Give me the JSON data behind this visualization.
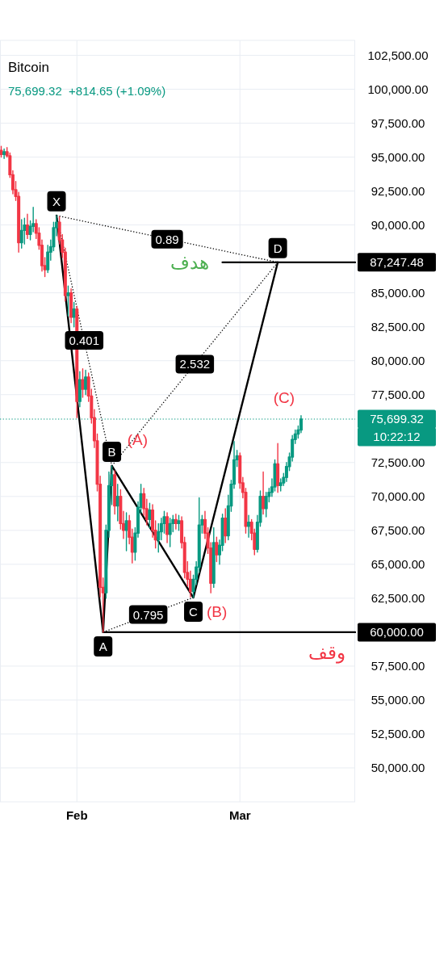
{
  "chart_data": {
    "type": "candlestick",
    "title": "Bitcoin",
    "subtitle": "75,699.32  +814.65 (+1.09%)",
    "x": [
      "--01-19T00:00",
      "--01-19T12:00",
      "--01-20T00:00",
      "--01-20T12:00",
      "--01-21T00:00",
      "--01-21T12:00",
      "--01-22T00:00",
      "--01-22T12:00",
      "--01-23T00:00",
      "--01-23T12:00",
      "--01-24T00:00",
      "--01-24T12:00",
      "--01-25T00:00",
      "--01-25T12:00",
      "--01-26T00:00",
      "--01-26T12:00",
      "--01-27T00:00",
      "--01-27T12:00",
      "--01-28T00:00",
      "--01-28T12:00",
      "--01-29T00:00",
      "--01-29T12:00",
      "--01-30T00:00",
      "--01-30T12:00",
      "--01-31T00:00",
      "--01-31T12:00",
      "--02-01T00:00",
      "--02-01T12:00",
      "--02-02T00:00",
      "--02-02T12:00",
      "--02-03T00:00",
      "--02-03T12:00",
      "--02-04T00:00",
      "--02-04T12:00",
      "--02-05T00:00",
      "--02-05T12:00",
      "--02-06T00:00",
      "--02-06T12:00",
      "--02-07T00:00",
      "--02-07T12:00",
      "--02-08T00:00",
      "--02-08T12:00",
      "--02-09T00:00",
      "--02-09T12:00",
      "--02-10T00:00",
      "--02-10T12:00",
      "--02-11T00:00",
      "--02-11T12:00",
      "--02-12T00:00",
      "--02-12T12:00",
      "--02-13T00:00",
      "--02-13T12:00",
      "--02-14T00:00",
      "--02-14T12:00",
      "--02-15T00:00",
      "--02-15T12:00",
      "--02-16T00:00",
      "--02-16T12:00",
      "--02-17T00:00",
      "--02-17T12:00",
      "--02-18T00:00",
      "--02-18T12:00",
      "--02-19T00:00",
      "--02-19T12:00",
      "--02-20T00:00",
      "--02-20T12:00",
      "--02-21T00:00",
      "--02-21T12:00",
      "--02-22T00:00",
      "--02-22T12:00",
      "--02-23T00:00",
      "--02-23T12:00",
      "--02-24T00:00",
      "--02-24T12:00",
      "--02-25T00:00",
      "--02-25T12:00",
      "--02-26T00:00",
      "--02-26T12:00",
      "--02-27T00:00",
      "--02-27T12:00",
      "--02-28T00:00",
      "--02-28T12:00",
      "--03-01T00:00",
      "--03-01T12:00",
      "--03-02T00:00",
      "--03-02T12:00",
      "--03-03T00:00",
      "--03-03T12:00",
      "--03-04T00:00",
      "--03-04T12:00",
      "--03-05T00:00",
      "--03-05T12:00",
      "--03-06T00:00",
      "--03-06T12:00",
      "--03-07T00:00",
      "--03-07T12:00",
      "--03-08T00:00",
      "--03-08T12:00",
      "--03-09T00:00",
      "--03-09T12:00",
      "--03-10T00:00",
      "--03-10T12:00",
      "--03-11T00:00",
      "--03-11T12:00"
    ],
    "ohlc": [
      [
        95500,
        95800,
        95000,
        95200
      ],
      [
        95200,
        95600,
        94900,
        95400
      ],
      [
        95400,
        95700,
        95000,
        95100
      ],
      [
        95100,
        95300,
        93500,
        93700
      ],
      [
        93700,
        94000,
        92300,
        92600
      ],
      [
        92600,
        93200,
        91800,
        92100
      ],
      [
        92100,
        92400,
        88000,
        88700
      ],
      [
        88700,
        90400,
        88300,
        89600
      ],
      [
        89600,
        90500,
        88600,
        90000
      ],
      [
        90000,
        90800,
        89000,
        89300
      ],
      [
        89300,
        90300,
        88900,
        89900
      ],
      [
        89900,
        91300,
        89500,
        90100
      ],
      [
        90100,
        90400,
        89000,
        89400
      ],
      [
        89400,
        89800,
        88200,
        88500
      ],
      [
        88500,
        88900,
        86600,
        87000
      ],
      [
        87000,
        87600,
        86200,
        86700
      ],
      [
        86700,
        88500,
        86500,
        88000
      ],
      [
        88000,
        88900,
        87400,
        88400
      ],
      [
        88400,
        90200,
        88100,
        89800
      ],
      [
        89800,
        90700,
        89200,
        90200
      ],
      [
        90200,
        90600,
        88600,
        88900
      ],
      [
        88900,
        89300,
        87600,
        88000
      ],
      [
        88000,
        88300,
        84400,
        84800
      ],
      [
        84800,
        85500,
        83300,
        85000
      ],
      [
        85000,
        85300,
        82800,
        83200
      ],
      [
        83200,
        84300,
        82500,
        83800
      ],
      [
        83800,
        84000,
        75800,
        77000
      ],
      [
        77000,
        79200,
        76600,
        78600
      ],
      [
        78600,
        79400,
        77300,
        77900
      ],
      [
        77900,
        79300,
        77500,
        78800
      ],
      [
        78800,
        79100,
        77000,
        77400
      ],
      [
        77400,
        77900,
        75400,
        75800
      ],
      [
        75800,
        76400,
        73600,
        74100
      ],
      [
        74100,
        74600,
        70400,
        70900
      ],
      [
        70900,
        71500,
        62600,
        63300
      ],
      [
        63300,
        64000,
        60000,
        62900
      ],
      [
        62900,
        67900,
        62500,
        67500
      ],
      [
        67500,
        71800,
        67000,
        70800
      ],
      [
        70800,
        72250,
        69400,
        71600
      ],
      [
        71600,
        71900,
        68700,
        69300
      ],
      [
        69300,
        70900,
        68200,
        70000
      ],
      [
        70000,
        70500,
        67600,
        68000
      ],
      [
        68000,
        68900,
        66900,
        67500
      ],
      [
        67500,
        68800,
        66000,
        68200
      ],
      [
        68200,
        68600,
        66500,
        67000
      ],
      [
        67000,
        67600,
        65100,
        65900
      ],
      [
        65900,
        67700,
        65300,
        67300
      ],
      [
        67300,
        69600,
        67000,
        69200
      ],
      [
        69200,
        70900,
        68800,
        70200
      ],
      [
        70200,
        70600,
        68600,
        69100
      ],
      [
        69100,
        69800,
        67900,
        68300
      ],
      [
        68300,
        69500,
        67700,
        69000
      ],
      [
        69000,
        69400,
        67000,
        67500
      ],
      [
        67500,
        68200,
        66200,
        66800
      ],
      [
        66800,
        68000,
        65900,
        67400
      ],
      [
        67400,
        68400,
        66800,
        68000
      ],
      [
        68000,
        68900,
        67300,
        68500
      ],
      [
        68500,
        68800,
        66600,
        67200
      ],
      [
        67200,
        68400,
        66300,
        68000
      ],
      [
        68000,
        68600,
        67400,
        68300
      ],
      [
        68300,
        68700,
        67600,
        68000
      ],
      [
        68000,
        68600,
        67500,
        68200
      ],
      [
        68200,
        68500,
        66200,
        66600
      ],
      [
        66600,
        67000,
        64000,
        64400
      ],
      [
        64400,
        65200,
        63400,
        63900
      ],
      [
        63900,
        64500,
        62600,
        63000
      ],
      [
        63000,
        64200,
        62550,
        63900
      ],
      [
        63900,
        65200,
        63500,
        64800
      ],
      [
        64800,
        69900,
        64400,
        67900
      ],
      [
        67900,
        68600,
        67300,
        68300
      ],
      [
        68300,
        68900,
        66900,
        67300
      ],
      [
        67300,
        67700,
        65800,
        66200
      ],
      [
        66200,
        66600,
        62900,
        63600
      ],
      [
        63600,
        67700,
        63300,
        66600
      ],
      [
        66600,
        67000,
        65200,
        65700
      ],
      [
        65700,
        66800,
        65000,
        66400
      ],
      [
        66400,
        68700,
        66000,
        68400
      ],
      [
        68400,
        69100,
        66600,
        67100
      ],
      [
        67100,
        70100,
        66800,
        69300
      ],
      [
        69300,
        71200,
        68900,
        70900
      ],
      [
        70900,
        74050,
        70600,
        72700
      ],
      [
        72700,
        73400,
        72200,
        73000
      ],
      [
        73000,
        73200,
        70600,
        71000
      ],
      [
        71000,
        71400,
        69900,
        70300
      ],
      [
        70300,
        70600,
        67300,
        67800
      ],
      [
        67800,
        68600,
        67000,
        68100
      ],
      [
        68100,
        68300,
        66800,
        67300
      ],
      [
        67300,
        67600,
        65700,
        66100
      ],
      [
        66100,
        68600,
        65900,
        68100
      ],
      [
        68100,
        70400,
        67800,
        70000
      ],
      [
        70000,
        71800,
        68700,
        69100
      ],
      [
        69100,
        70300,
        68500,
        70000
      ],
      [
        70000,
        70600,
        69600,
        70300
      ],
      [
        70300,
        71300,
        70000,
        70700
      ],
      [
        70700,
        72700,
        70400,
        72400
      ],
      [
        72400,
        73900,
        70300,
        70800
      ],
      [
        70800,
        71300,
        70400,
        71000
      ],
      [
        71000,
        71700,
        70800,
        71400
      ],
      [
        71400,
        72500,
        71100,
        72200
      ],
      [
        72200,
        73200,
        71900,
        72900
      ],
      [
        72900,
        74500,
        72600,
        74200
      ],
      [
        74200,
        74900,
        73900,
        74600
      ],
      [
        74600,
        75200,
        74300,
        74900
      ],
      [
        74900,
        75950,
        74700,
        75699.32
      ]
    ],
    "series": [
      {
        "type": "line",
        "color": "#000000",
        "x": [
          "--01-28T12:00",
          "--02-05T12:00",
          "--02-07T00:00",
          "--02-21T00:00",
          "--03-07T12:00"
        ],
        "values": [
          90700,
          60000,
          72250,
          62550,
          87250
        ]
      },
      {
        "type": "line",
        "line_style": "dotted",
        "color": "#000000",
        "x": [
          "--01-28T12:00",
          "--02-07T00:00"
        ],
        "values": [
          90700,
          72250
        ]
      },
      {
        "type": "line",
        "line_style": "dotted",
        "color": "#000000",
        "x": [
          "--02-05T12:00",
          "--02-21T00:00"
        ],
        "values": [
          60000,
          62550
        ]
      },
      {
        "type": "line",
        "line_style": "dotted",
        "color": "#000000",
        "x": [
          "--02-07T00:00",
          "--03-07T12:00"
        ],
        "values": [
          72250,
          87250
        ]
      },
      {
        "type": "line",
        "line_style": "dotted",
        "color": "#000000",
        "x": [
          "--01-28T12:00",
          "--03-07T12:00"
        ],
        "values": [
          90700,
          87250
        ]
      },
      {
        "type": "line",
        "color": "#000000",
        "x": [
          "--02-26T00:00",
          "--03-20T19:00"
        ],
        "values": [
          87247.48,
          87247.48
        ],
        "value_labels": [
          null,
          "87,247.48"
        ]
      },
      {
        "type": "line",
        "color": "#000000",
        "x": [
          "--02-05T12:00",
          "--03-20T19:00"
        ],
        "values": [
          60000,
          60000
        ],
        "value_labels": [
          null,
          "60,000.00"
        ]
      }
    ],
    "ref_lines": [
      {
        "axis": "y",
        "value": 75699.32,
        "label": "75,699.32",
        "color": "#089981",
        "line_style": "dotted"
      }
    ],
    "annotations": [
      {
        "text": "X",
        "x": "--01-28T12:00",
        "y": 90700
      },
      {
        "text": "A",
        "x": "--02-05T12:00",
        "y": 60000
      },
      {
        "text": "B",
        "x": "--02-07T00:00",
        "y": 72250
      },
      {
        "text": "C",
        "x": "--02-21T00:00",
        "y": 62550
      },
      {
        "text": "D",
        "x": "--03-07T12:00",
        "y": 87250
      },
      {
        "text": "0.401",
        "x": "--02-02T06:00",
        "y": 81500
      },
      {
        "text": "0.795",
        "x": "--02-13T06:00",
        "y": 61300
      },
      {
        "text": "2.532",
        "x": "--02-21T06:00",
        "y": 79750
      },
      {
        "text": "0.89",
        "x": "--02-16T12:00",
        "y": 88950
      },
      {
        "text": "(A)",
        "x": "--02-11T10:00",
        "y": 74200
      },
      "(B)",
      "(C)",
      "هدف",
      "وقف",
      "10:22:12"
    ],
    "xlim": [
      "--01-18T19:00",
      "--03-20T19:00"
    ],
    "ylim": [
      47500,
      103600
    ],
    "xticks": [
      {
        "value": "--02-01",
        "label": "Feb"
      },
      {
        "value": "--03-01",
        "label": "Mar"
      }
    ],
    "yticks": [
      {
        "value": 50000,
        "label": "50,000.00"
      },
      {
        "value": 52500,
        "label": "52,500.00"
      },
      {
        "value": 55000,
        "label": "55,000.00"
      },
      {
        "value": 57500,
        "label": "57,500.00"
      },
      {
        "value": 62500,
        "label": "62,500.00"
      },
      {
        "value": 65000,
        "label": "65,000.00"
      },
      {
        "value": 67500,
        "label": "67,500.00"
      },
      {
        "value": 70000,
        "label": "70,000.00"
      },
      {
        "value": 72500,
        "label": "72,500.00"
      },
      {
        "value": 77500,
        "label": "77,500.00"
      },
      {
        "value": 80000,
        "label": "80,000.00"
      },
      {
        "value": 82500,
        "label": "82,500.00"
      },
      {
        "value": 85000,
        "label": "85,000.00"
      },
      {
        "value": 90000,
        "label": "90,000.00"
      },
      {
        "value": 92500,
        "label": "92,500.00"
      },
      {
        "value": 95000,
        "label": "95,000.00"
      },
      {
        "value": 97500,
        "label": "97,500.00"
      },
      {
        "value": 100000,
        "label": "100,000.00"
      },
      {
        "value": 102500,
        "label": "102,500.00"
      }
    ],
    "grid": true
  }
}
